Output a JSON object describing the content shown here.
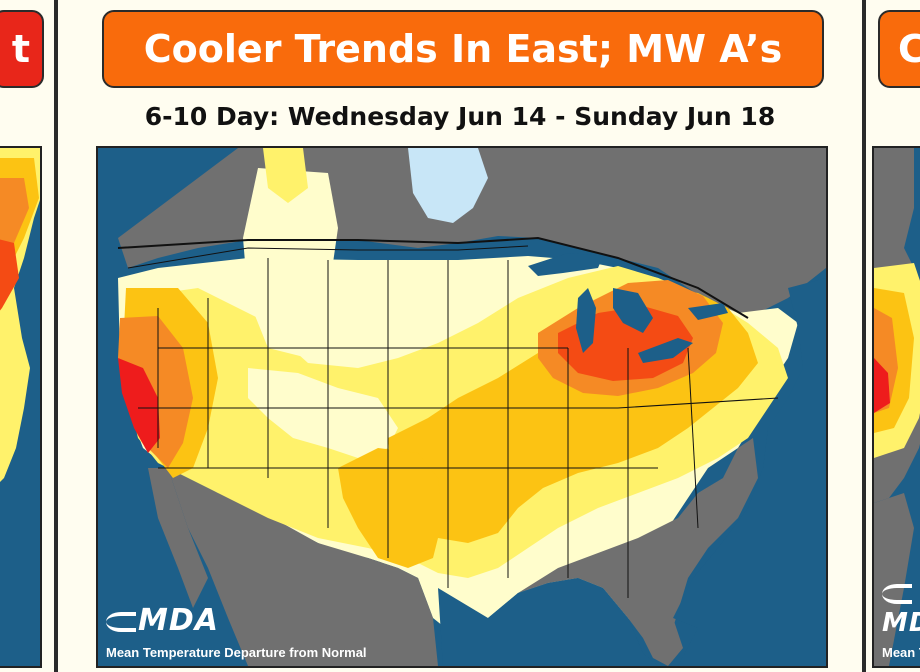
{
  "main_slide": {
    "banner_title": "Cooler Trends In East; MW A’s",
    "subtitle": "6-10 Day: Wednesday Jun 14 - Sunday Jun 18",
    "logo_text": "MDA",
    "caption": "Mean Temperature Departure from Normal"
  },
  "left_slide": {
    "banner_fragment": "t"
  },
  "right_slide": {
    "banner_fragment": "C",
    "logo_text": "MDA",
    "caption": "Mean Te"
  },
  "legend_colors": {
    "much_below": "#c8e6f7",
    "normal_gray": "#707070",
    "slightly_above": "#fffdcc",
    "above": "#fff26b",
    "well_above": "#fcc313",
    "much_above": "#f58a25",
    "extreme_above": "#f44b14",
    "record_above": "#ee1c1c",
    "water": "#1d5f89"
  }
}
